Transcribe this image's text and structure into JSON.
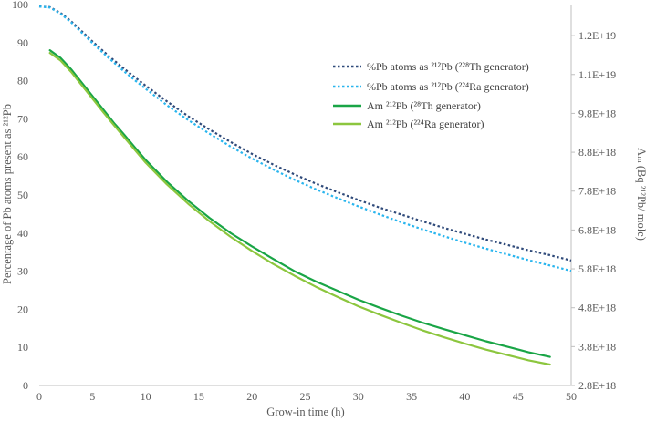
{
  "chart_data": {
    "type": "line",
    "title": "",
    "xlabel": "Grow-in time (h)",
    "ylabel": "Percentage of Pb atoms present as ²¹²Pb",
    "y2label": "Aₘ (Bq ²¹²Pb/ mole)",
    "xlim": [
      0,
      50
    ],
    "ylim": [
      0,
      100
    ],
    "y2lim": [
      2.8e+18,
      1.26e+19
    ],
    "x_ticks": [
      "0",
      "5",
      "10",
      "15",
      "20",
      "25",
      "30",
      "35",
      "40",
      "45",
      "50"
    ],
    "y_ticks": [
      "0",
      "10",
      "20",
      "30",
      "40",
      "50",
      "60",
      "70",
      "80",
      "90",
      "100"
    ],
    "y2_ticks": [
      "2.8E+18",
      "3.8E+18",
      "4.8E+18",
      "5.8E+18",
      "6.8E+18",
      "7.8E+18",
      "8.8E+18",
      "9.8E+18",
      "1.1E+19",
      "1.2E+19"
    ],
    "legend_position": "upper-right",
    "series": [
      {
        "name": "%Pb atoms as ²¹²Pb (²²⁸Th generator)",
        "color": "#2f4a7a",
        "dash": "dotted",
        "axis": "left",
        "x": [
          0,
          1,
          2,
          3,
          4,
          5,
          6,
          7,
          8,
          9,
          10,
          12,
          14,
          16,
          18,
          20,
          22,
          24,
          26,
          28,
          30,
          32,
          34,
          36,
          38,
          40,
          42,
          44,
          46,
          48,
          50
        ],
        "y": [
          99.5,
          99.3,
          97.8,
          95.6,
          93.0,
          90.3,
          87.8,
          85.4,
          83.1,
          80.9,
          78.7,
          74.6,
          70.7,
          67.2,
          63.9,
          60.8,
          58.0,
          55.4,
          53.0,
          50.8,
          48.7,
          46.7,
          44.9,
          43.1,
          41.4,
          39.8,
          38.3,
          36.9,
          35.5,
          34.2,
          32.8
        ]
      },
      {
        "name": "%Pb atoms as ²¹²Pb (²²⁴Ra generator)",
        "color": "#29b5ee",
        "dash": "dotted",
        "axis": "left",
        "x": [
          0,
          1,
          2,
          3,
          4,
          5,
          6,
          7,
          8,
          9,
          10,
          12,
          14,
          16,
          18,
          20,
          22,
          24,
          26,
          28,
          30,
          32,
          34,
          36,
          38,
          40,
          42,
          44,
          46,
          48,
          50
        ],
        "y": [
          99.5,
          99.2,
          97.6,
          95.3,
          92.6,
          89.9,
          87.3,
          84.8,
          82.4,
          80.1,
          77.9,
          73.6,
          69.7,
          66.1,
          62.7,
          59.6,
          56.7,
          54.0,
          51.5,
          49.2,
          47.0,
          44.9,
          42.9,
          41.0,
          39.2,
          37.5,
          35.9,
          34.4,
          32.9,
          31.5,
          30.1
        ]
      },
      {
        "name": "Am ²¹²Pb (²⁸Th generator)",
        "color": "#19a546",
        "dash": "solid",
        "axis": "left",
        "x": [
          1,
          2,
          3,
          4,
          5,
          6,
          7,
          8,
          9,
          10,
          12,
          14,
          16,
          18,
          20,
          22,
          24,
          26,
          28,
          30,
          32,
          34,
          36,
          38,
          40,
          42,
          44,
          46,
          48
        ],
        "y": [
          88.0,
          86.0,
          83.0,
          79.5,
          76.0,
          72.5,
          69.0,
          65.8,
          62.5,
          59.2,
          53.5,
          48.5,
          44.0,
          40.0,
          36.5,
          33.2,
          30.0,
          27.3,
          24.9,
          22.5,
          20.4,
          18.4,
          16.5,
          14.8,
          13.2,
          11.6,
          10.2,
          8.7,
          7.5
        ]
      },
      {
        "name": "Am ²¹²Pb (²²⁴Ra generator)",
        "color": "#8cc63e",
        "dash": "solid",
        "axis": "left",
        "x": [
          1,
          2,
          3,
          4,
          5,
          6,
          7,
          8,
          9,
          10,
          12,
          14,
          16,
          18,
          20,
          22,
          24,
          26,
          28,
          30,
          32,
          34,
          36,
          38,
          40,
          42,
          44,
          46,
          48
        ],
        "y": [
          87.3,
          85.3,
          82.3,
          78.8,
          75.3,
          71.8,
          68.4,
          65.1,
          61.8,
          58.5,
          52.8,
          47.7,
          43.1,
          39.0,
          35.3,
          31.9,
          28.8,
          25.9,
          23.3,
          20.8,
          18.6,
          16.5,
          14.5,
          12.7,
          11.0,
          9.4,
          8.0,
          6.6,
          5.5
        ]
      }
    ]
  }
}
